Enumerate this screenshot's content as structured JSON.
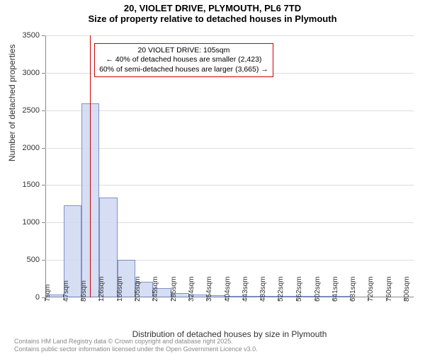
{
  "title_line1": "20, VIOLET DRIVE, PLYMOUTH, PL6 7TD",
  "title_line2": "Size of property relative to detached houses in Plymouth",
  "ylabel": "Number of detached properties",
  "xlabel": "Distribution of detached houses by size in Plymouth",
  "footer_line1": "Contains HM Land Registry data © Crown copyright and database right 2025.",
  "footer_line2": "Contains public sector information licensed under the Open Government Licence v3.0.",
  "chart": {
    "type": "histogram",
    "background_color": "#ffffff",
    "grid_color": "#dddddd",
    "axis_color": "#888888",
    "bar_fill": "#cfd9f2",
    "bar_stroke": "#6a7fbf",
    "bar_stroke_width": 1,
    "bar_fill_opacity": 0.85,
    "marker_color": "#cc0000",
    "annotation_border": "#cc0000",
    "text_color": "#333333",
    "title_fontsize": 13,
    "label_fontsize": 12,
    "tick_fontsize": 11,
    "xtick_fontsize": 10,
    "xlim": [
      7,
      820
    ],
    "ylim": [
      0,
      3500
    ],
    "ytick_step": 500,
    "yticks": [
      0,
      500,
      1000,
      1500,
      2000,
      2500,
      3000,
      3500
    ],
    "xticks": [
      7,
      47,
      86,
      126,
      166,
      205,
      245,
      285,
      324,
      364,
      404,
      443,
      483,
      522,
      562,
      602,
      641,
      681,
      720,
      760,
      800
    ],
    "xtick_unit": "sqm",
    "bin_edges": [
      7,
      47,
      86,
      126,
      166,
      205,
      245,
      285,
      324,
      364,
      404,
      443,
      483,
      522,
      562,
      602,
      641,
      681,
      720,
      760,
      800
    ],
    "counts": [
      40,
      1230,
      2590,
      1330,
      500,
      210,
      120,
      60,
      40,
      30,
      15,
      8,
      5,
      3,
      2,
      1,
      1,
      0,
      0,
      0
    ],
    "marker_x": 105,
    "annotation": {
      "line1": "20 VIOLET DRIVE: 105sqm",
      "line2": "← 40% of detached houses are smaller (2,423)",
      "line3": "60% of semi-detached houses are larger (3,665) →",
      "x": 115,
      "y_top": 3400,
      "border_width": 1
    }
  }
}
